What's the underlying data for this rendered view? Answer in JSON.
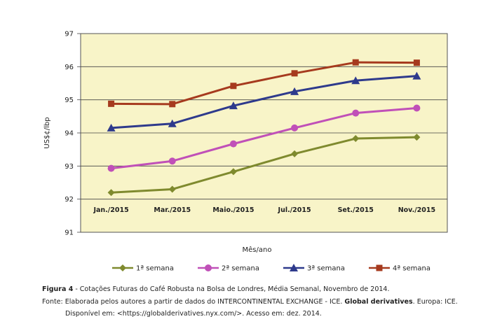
{
  "chart_data": {
    "type": "line",
    "xlabel": "Mês/ano",
    "ylabel": "US$¢/lbp",
    "ylim": [
      91,
      97
    ],
    "yticks": [
      91,
      92,
      93,
      94,
      95,
      96,
      97
    ],
    "categories": [
      "Jan./2015",
      "Mar./2015",
      "Maio./2015",
      "Jul./2015",
      "Set./2015",
      "Nov./2015"
    ],
    "grid": true,
    "legend_position": "bottom",
    "plot_background": "#f8f4c8",
    "series": [
      {
        "name": "1ª semana",
        "color": "#7f8a2e",
        "marker": "diamond",
        "values": [
          92.2,
          92.3,
          92.83,
          93.37,
          93.83,
          93.87
        ]
      },
      {
        "name": "2ª semana",
        "color": "#c050b8",
        "marker": "circle",
        "values": [
          92.93,
          93.15,
          93.67,
          94.15,
          94.6,
          94.75
        ]
      },
      {
        "name": "3ª semana",
        "color": "#2e3a8c",
        "marker": "triangle",
        "values": [
          94.15,
          94.28,
          94.82,
          95.25,
          95.58,
          95.72
        ]
      },
      {
        "name": "4ª semana",
        "color": "#a63a1e",
        "marker": "square",
        "values": [
          94.88,
          94.87,
          95.42,
          95.8,
          96.13,
          96.12
        ]
      }
    ]
  },
  "caption": {
    "figure_label": "Figura 4",
    "figure_text": " - Cotações Futuras do Café Robusta na Bolsa de Londres, Média Semanal, Novembro de 2014.",
    "source_text": "Fonte: Elaborada pelos autores a partir de dados do INTERCONTINENTAL EXCHANGE - ICE. ",
    "source_bold": "Global derivatives",
    "source_tail": ". Europa: ICE.",
    "available": "Disponível em: <https://globalderivatives.nyx.com/>. Acesso em: dez. 2014."
  }
}
